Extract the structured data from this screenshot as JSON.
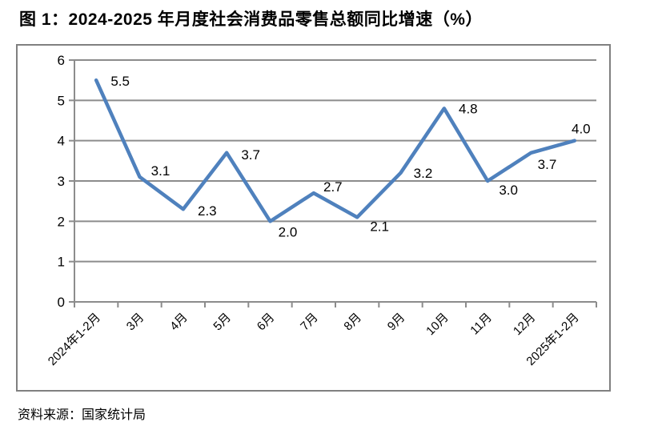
{
  "title": "图 1：2024-2025 年月度社会消费品零售总额同比增速（%）",
  "source": "资料来源：国家统计局",
  "chart_data": {
    "type": "line",
    "title": "图 1：2024-2025 年月度社会消费品零售总额同比增速（%）",
    "categories": [
      "2024年1-2月",
      "3月",
      "4月",
      "5月",
      "6月",
      "7月",
      "8月",
      "9月",
      "10月",
      "11月",
      "12月",
      "2025年1-2月"
    ],
    "values": [
      5.5,
      3.1,
      2.3,
      3.7,
      2.0,
      2.7,
      2.1,
      3.2,
      4.8,
      3.0,
      3.7,
      4.0
    ],
    "data_labels": [
      "5.5",
      "3.1",
      "2.3",
      "3.7",
      "2.0",
      "2.7",
      "2.1",
      "3.2",
      "4.8",
      "3.0",
      "3.7",
      "4.0"
    ],
    "xlabel": "",
    "ylabel": "",
    "ylim": [
      0,
      6
    ],
    "yticks": [
      0,
      1,
      2,
      3,
      4,
      5,
      6
    ],
    "grid": true,
    "legend": false,
    "line_color": "#4F81BD",
    "grid_color": "#8C8C8C",
    "frame_color": "#808080",
    "source_note": "资料来源：国家统计局"
  }
}
